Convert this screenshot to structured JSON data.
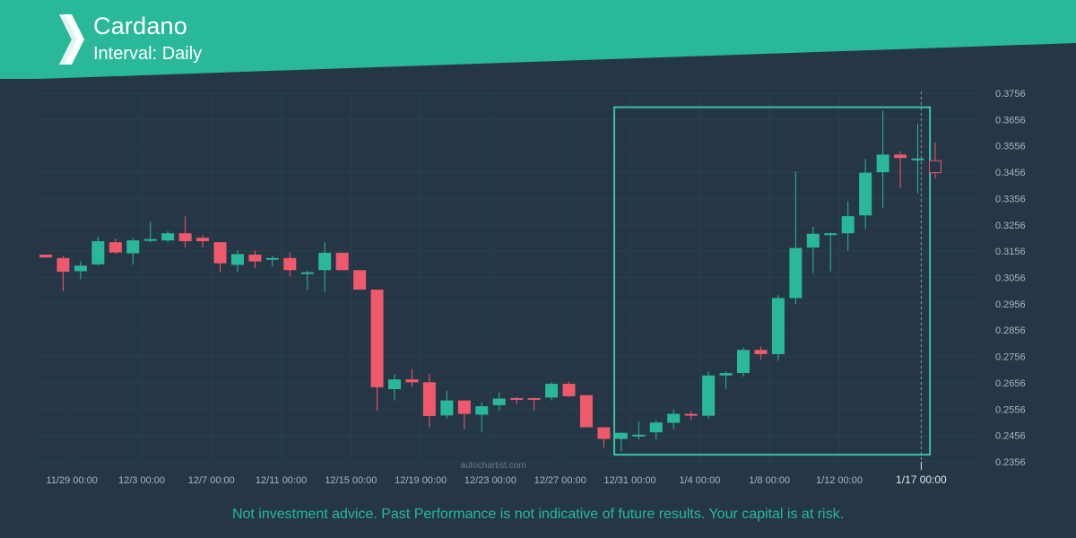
{
  "header": {
    "title": "Cardano",
    "subtitle": "Interval: Daily",
    "logo_icon": "autochartist-logo-icon"
  },
  "watermark": "autochartist.com",
  "disclaimer": "Not investment advice. Past Performance is not indicative of future results. Your capital is at risk.",
  "colors": {
    "background": "#253746",
    "banner": "#2ab89a",
    "up": "#2ab89a",
    "down": "#f0596b",
    "grid": "#2c3f4e",
    "axis_text": "#a9b4bd",
    "box": "#3cc2a6"
  },
  "chart_data": {
    "type": "candlestick",
    "title": "Cardano",
    "interval": "Daily",
    "y_ticks": [
      "0.3756",
      "0.3656",
      "0.3556",
      "0.3456",
      "0.3356",
      "0.3256",
      "0.3156",
      "0.3056",
      "0.2956",
      "0.2856",
      "0.2756",
      "0.2656",
      "0.2556",
      "0.2456",
      "0.2356"
    ],
    "ylim": [
      0.2356,
      0.3756
    ],
    "x_tick_labels": [
      {
        "label": "11/29 00:00",
        "index": 1.5
      },
      {
        "label": "12/3 00:00",
        "index": 5.5
      },
      {
        "label": "12/7 00:00",
        "index": 9.5
      },
      {
        "label": "12/11 00:00",
        "index": 13.5
      },
      {
        "label": "12/15 00:00",
        "index": 17.5
      },
      {
        "label": "12/19 00:00",
        "index": 21.5
      },
      {
        "label": "12/23 00:00",
        "index": 25.5
      },
      {
        "label": "12/27 00:00",
        "index": 29.5
      },
      {
        "label": "12/31 00:00",
        "index": 33.5
      },
      {
        "label": "1/4 00:00",
        "index": 37.5
      },
      {
        "label": "1/8 00:00",
        "index": 41.5
      },
      {
        "label": "1/12 00:00",
        "index": 45.5
      },
      {
        "label": "1/17 00:00",
        "index": 50.2,
        "highlight": true
      }
    ],
    "candles": [
      {
        "o": 0.3143,
        "h": 0.3143,
        "l": 0.3132,
        "c": 0.3132
      },
      {
        "o": 0.313,
        "h": 0.3138,
        "l": 0.3004,
        "c": 0.3078
      },
      {
        "o": 0.308,
        "h": 0.3119,
        "l": 0.3049,
        "c": 0.3101
      },
      {
        "o": 0.3106,
        "h": 0.3211,
        "l": 0.3102,
        "c": 0.3194
      },
      {
        "o": 0.319,
        "h": 0.3204,
        "l": 0.3145,
        "c": 0.3151
      },
      {
        "o": 0.3148,
        "h": 0.3206,
        "l": 0.3105,
        "c": 0.3197
      },
      {
        "o": 0.3197,
        "h": 0.3268,
        "l": 0.319,
        "c": 0.3202
      },
      {
        "o": 0.3197,
        "h": 0.3232,
        "l": 0.319,
        "c": 0.3224
      },
      {
        "o": 0.3224,
        "h": 0.3288,
        "l": 0.3169,
        "c": 0.3194
      },
      {
        "o": 0.3207,
        "h": 0.3217,
        "l": 0.317,
        "c": 0.3194
      },
      {
        "o": 0.319,
        "h": 0.319,
        "l": 0.3076,
        "c": 0.311
      },
      {
        "o": 0.3104,
        "h": 0.316,
        "l": 0.3076,
        "c": 0.3145
      },
      {
        "o": 0.3143,
        "h": 0.3158,
        "l": 0.3091,
        "c": 0.3117
      },
      {
        "o": 0.3124,
        "h": 0.3139,
        "l": 0.3098,
        "c": 0.313
      },
      {
        "o": 0.313,
        "h": 0.3152,
        "l": 0.306,
        "c": 0.3084
      },
      {
        "o": 0.3076,
        "h": 0.3082,
        "l": 0.301,
        "c": 0.3076
      },
      {
        "o": 0.3084,
        "h": 0.319,
        "l": 0.3001,
        "c": 0.315
      },
      {
        "o": 0.315,
        "h": 0.315,
        "l": 0.3084,
        "c": 0.3084
      },
      {
        "o": 0.3084,
        "h": 0.3084,
        "l": 0.301,
        "c": 0.301
      },
      {
        "o": 0.301,
        "h": 0.301,
        "l": 0.255,
        "c": 0.2639
      },
      {
        "o": 0.2632,
        "h": 0.2689,
        "l": 0.2589,
        "c": 0.2669
      },
      {
        "o": 0.2669,
        "h": 0.2708,
        "l": 0.264,
        "c": 0.2658
      },
      {
        "o": 0.2658,
        "h": 0.269,
        "l": 0.2487,
        "c": 0.253
      },
      {
        "o": 0.2532,
        "h": 0.2626,
        "l": 0.252,
        "c": 0.2589
      },
      {
        "o": 0.2589,
        "h": 0.2589,
        "l": 0.248,
        "c": 0.2538
      },
      {
        "o": 0.2535,
        "h": 0.2581,
        "l": 0.2468,
        "c": 0.2567
      },
      {
        "o": 0.2571,
        "h": 0.262,
        "l": 0.255,
        "c": 0.2596
      },
      {
        "o": 0.2598,
        "h": 0.2603,
        "l": 0.2575,
        "c": 0.2593
      },
      {
        "o": 0.2598,
        "h": 0.26,
        "l": 0.255,
        "c": 0.2596
      },
      {
        "o": 0.26,
        "h": 0.2658,
        "l": 0.2589,
        "c": 0.2652
      },
      {
        "o": 0.2652,
        "h": 0.266,
        "l": 0.2603,
        "c": 0.2605
      },
      {
        "o": 0.2609,
        "h": 0.2609,
        "l": 0.2487,
        "c": 0.2487
      },
      {
        "o": 0.2487,
        "h": 0.2487,
        "l": 0.241,
        "c": 0.2443
      },
      {
        "o": 0.2443,
        "h": 0.2466,
        "l": 0.2395,
        "c": 0.2466
      },
      {
        "o": 0.2459,
        "h": 0.2509,
        "l": 0.244,
        "c": 0.2459
      },
      {
        "o": 0.2468,
        "h": 0.2514,
        "l": 0.244,
        "c": 0.2505
      },
      {
        "o": 0.2504,
        "h": 0.2555,
        "l": 0.2479,
        "c": 0.2538
      },
      {
        "o": 0.2538,
        "h": 0.2549,
        "l": 0.2515,
        "c": 0.2531
      },
      {
        "o": 0.2531,
        "h": 0.27,
        "l": 0.252,
        "c": 0.2684
      },
      {
        "o": 0.2684,
        "h": 0.27,
        "l": 0.2633,
        "c": 0.2693
      },
      {
        "o": 0.2693,
        "h": 0.279,
        "l": 0.268,
        "c": 0.2781
      },
      {
        "o": 0.2781,
        "h": 0.2793,
        "l": 0.2744,
        "c": 0.2765
      },
      {
        "o": 0.2765,
        "h": 0.299,
        "l": 0.274,
        "c": 0.2978
      },
      {
        "o": 0.2978,
        "h": 0.3459,
        "l": 0.2956,
        "c": 0.3168
      },
      {
        "o": 0.317,
        "h": 0.3249,
        "l": 0.3073,
        "c": 0.3222
      },
      {
        "o": 0.3222,
        "h": 0.3227,
        "l": 0.3079,
        "c": 0.3224
      },
      {
        "o": 0.3224,
        "h": 0.3345,
        "l": 0.3158,
        "c": 0.3289
      },
      {
        "o": 0.3292,
        "h": 0.3506,
        "l": 0.324,
        "c": 0.3454
      },
      {
        "o": 0.3456,
        "h": 0.3689,
        "l": 0.3321,
        "c": 0.3523
      },
      {
        "o": 0.3523,
        "h": 0.3536,
        "l": 0.3396,
        "c": 0.351
      },
      {
        "o": 0.3508,
        "h": 0.3639,
        "l": 0.3377,
        "c": 0.3508
      },
      {
        "o": 0.35,
        "h": 0.3569,
        "l": 0.3432,
        "c": 0.3454,
        "hollow": true
      }
    ],
    "highlight_box": {
      "from_index": 32.6,
      "to_index": 50.7,
      "top": 0.3703,
      "bottom": 0.2383
    },
    "current_marker_index": 50.2
  }
}
